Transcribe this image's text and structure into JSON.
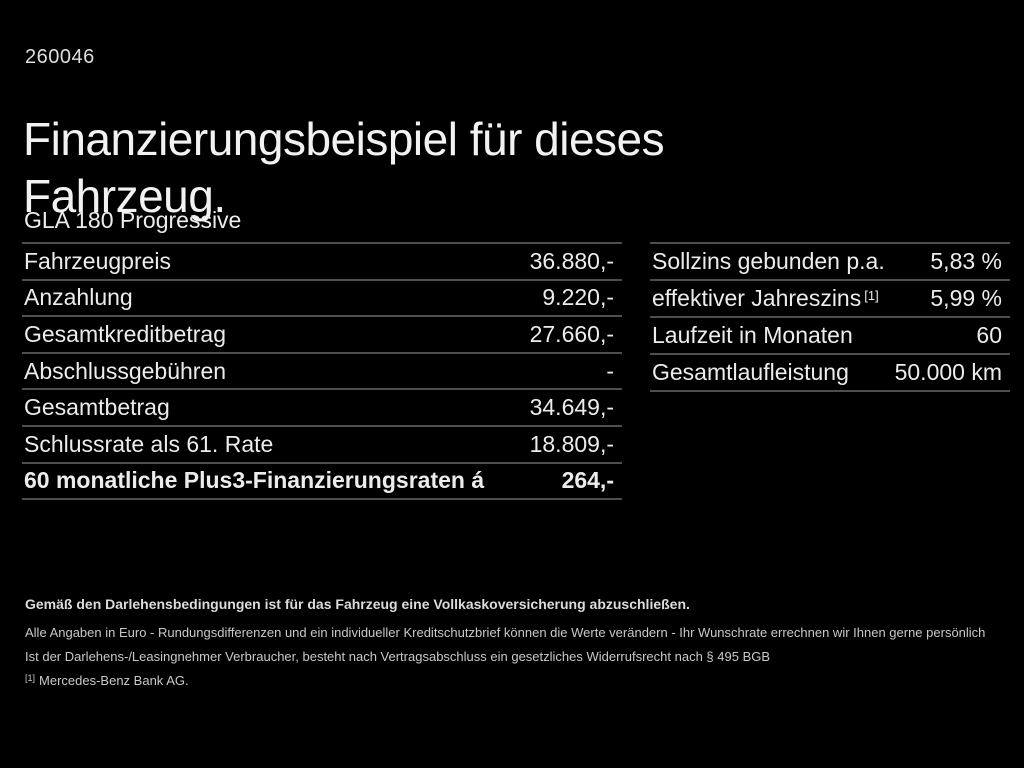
{
  "page": {
    "doc_number": "260046",
    "title_line1": "Finanzierungsbeispiel für dieses",
    "title_line2": "Fahrzeug.",
    "model": "GLA 180 Progressive"
  },
  "finance_table": {
    "rows": [
      {
        "label": "Fahrzeugpreis",
        "value": "36.880,-"
      },
      {
        "label": "Anzahlung",
        "value": "9.220,-"
      },
      {
        "label": "Gesamtkreditbetrag",
        "value": "27.660,-"
      },
      {
        "label": "Abschlussgebühren",
        "value": "-"
      },
      {
        "label": "Gesamtbetrag",
        "value": "34.649,-"
      },
      {
        "label": "Schlussrate als 61. Rate",
        "value": "18.809,-"
      },
      {
        "label": "60 monatliche Plus3-Finanzierungsraten á",
        "value": "264,-"
      }
    ]
  },
  "conditions_table": {
    "rows": [
      {
        "label": "Sollzins gebunden p.a.",
        "value": "5,83 %"
      },
      {
        "label": "effektiver Jahreszins",
        "label_superscript": "[1]",
        "value": "5,99 %"
      },
      {
        "label": "Laufzeit in Monaten",
        "value": "60"
      },
      {
        "label": "Gesamtlaufleistung",
        "value": "50.000 km"
      }
    ]
  },
  "footer": {
    "line1": "Gemäß den Darlehensbedingungen ist für das Fahrzeug eine Vollkaskoversicherung abzuschließen.",
    "line2": "Alle Angaben in Euro - Rundungsdifferenzen und ein individueller Kreditschutzbrief können die Werte verändern - Ihr Wunschrate errechnen wir Ihnen gerne persönlich",
    "line3": "Ist der Darlehens-/Leasingnehmer Verbraucher, besteht nach Vertragsabschluss ein gesetzliches Widerrufsrecht nach § 495 BGB",
    "footnote_marker": "[1]",
    "footnote_text": "Mercedes-Benz Bank AG."
  },
  "colors": {
    "background": "#000000",
    "text": "#ececec",
    "divider": "#4e4e4e"
  }
}
